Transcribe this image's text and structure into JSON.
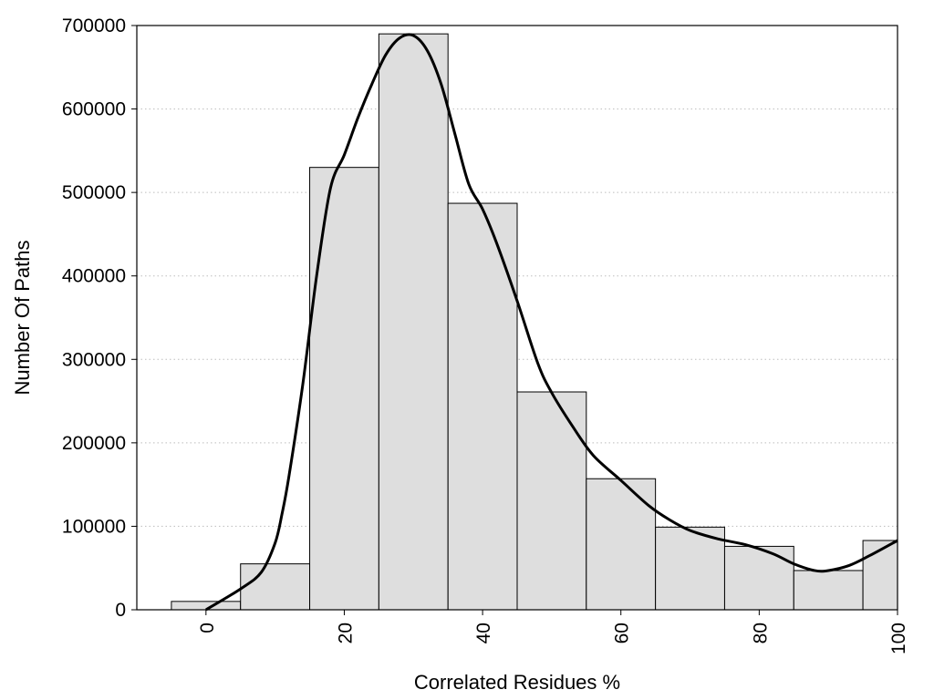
{
  "chart_data": {
    "type": "bar",
    "title": "",
    "xlabel": "Correlated Residues %",
    "ylabel": "Number Of Paths",
    "xlim": [
      -10,
      100
    ],
    "ylim": [
      0,
      700000
    ],
    "x_ticks": [
      "0",
      "20",
      "40",
      "60",
      "80",
      "100"
    ],
    "y_ticks": [
      "0",
      "100000",
      "200000",
      "300000",
      "400000",
      "500000",
      "600000",
      "700000"
    ],
    "grid": "horizontal-dotted",
    "bin_width": 10,
    "bins": [
      {
        "center": 0,
        "value": 10000
      },
      {
        "center": 10,
        "value": 55000
      },
      {
        "center": 20,
        "value": 530000
      },
      {
        "center": 30,
        "value": 690000
      },
      {
        "center": 40,
        "value": 487000
      },
      {
        "center": 50,
        "value": 261000
      },
      {
        "center": 60,
        "value": 157000
      },
      {
        "center": 70,
        "value": 99000
      },
      {
        "center": 80,
        "value": 76000
      },
      {
        "center": 90,
        "value": 47000
      },
      {
        "center": 100,
        "value": 83000
      }
    ],
    "curve": [
      [
        0,
        0
      ],
      [
        5,
        25000
      ],
      [
        8,
        45000
      ],
      [
        10,
        80000
      ],
      [
        11,
        115000
      ],
      [
        12,
        160000
      ],
      [
        14,
        270000
      ],
      [
        16,
        400000
      ],
      [
        18,
        505000
      ],
      [
        20,
        545000
      ],
      [
        22,
        590000
      ],
      [
        24,
        630000
      ],
      [
        26,
        665000
      ],
      [
        28,
        685000
      ],
      [
        30,
        688000
      ],
      [
        32,
        670000
      ],
      [
        34,
        630000
      ],
      [
        36,
        570000
      ],
      [
        38,
        510000
      ],
      [
        40,
        480000
      ],
      [
        42,
        440000
      ],
      [
        45,
        370000
      ],
      [
        48,
        295000
      ],
      [
        50,
        260000
      ],
      [
        53,
        220000
      ],
      [
        56,
        185000
      ],
      [
        60,
        155000
      ],
      [
        64,
        125000
      ],
      [
        67,
        108000
      ],
      [
        70,
        95000
      ],
      [
        74,
        85000
      ],
      [
        78,
        78000
      ],
      [
        82,
        67000
      ],
      [
        85,
        55000
      ],
      [
        88,
        47000
      ],
      [
        90,
        47000
      ],
      [
        93,
        53000
      ],
      [
        96,
        65000
      ],
      [
        100,
        83000
      ]
    ],
    "colors": {
      "bar_fill": "#dedede",
      "bar_stroke": "#000000",
      "curve": "#000000"
    }
  }
}
